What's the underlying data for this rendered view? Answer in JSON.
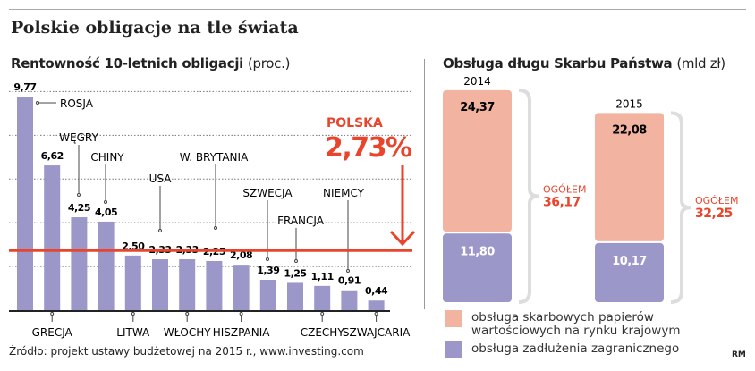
{
  "title": "Polskie obligacje na tle świata",
  "source": "Źródło: projekt ustawy budżetowej na 2015 r., www.investing.com",
  "credit": "RM",
  "colors": {
    "bar": "#9b97c9",
    "domestic": "#f2b4a0",
    "foreign": "#9b97c9",
    "accent": "#e8452c"
  },
  "chart_data": [
    {
      "type": "bar",
      "title": "Rentowność 10-letnich obligacji",
      "unit": "(proc.)",
      "categories": [
        "ROSJA",
        "GRECJA",
        "WĘGRY",
        "CHINY",
        "LITWA",
        "USA",
        "WŁOCHY",
        "W. BRYTANIA",
        "HISZPANIA",
        "SZWECJA",
        "FRANCJA",
        "CZECHY",
        "NIEMCY",
        "SZWAJCARIA"
      ],
      "values": [
        9.77,
        6.62,
        4.25,
        4.05,
        2.5,
        2.33,
        2.33,
        2.25,
        2.08,
        1.39,
        1.25,
        1.11,
        0.91,
        0.44
      ],
      "value_labels": [
        "9,77",
        "6,62",
        "4,25",
        "4,05",
        "2,50",
        "2,33",
        "2,33",
        "2,25",
        "2,08",
        "1,39",
        "1,25",
        "1,11",
        "0,91",
        "0,44"
      ],
      "ylim": [
        0,
        10
      ],
      "grid": true,
      "reference": {
        "label": "POLSKA",
        "value": 2.73,
        "value_label": "2,73%"
      }
    },
    {
      "type": "bar",
      "stacked": true,
      "title": "Obsługa długu Skarbu Państwa",
      "unit": "(mld zł)",
      "categories": [
        "2014",
        "2015"
      ],
      "series": [
        {
          "name": "obsługa skarbowych papierów wartościowych na rynku krajowym",
          "values": [
            24.37,
            22.08
          ],
          "labels": [
            "24,37",
            "22,08"
          ]
        },
        {
          "name": "obsługa zadłużenia zagranicznego",
          "values": [
            11.8,
            10.17
          ],
          "labels": [
            "11,80",
            "10,17"
          ]
        }
      ],
      "totals": {
        "label": "OGÓŁEM",
        "values": [
          "36,17",
          "32,25"
        ]
      },
      "legend": "bottom"
    }
  ]
}
